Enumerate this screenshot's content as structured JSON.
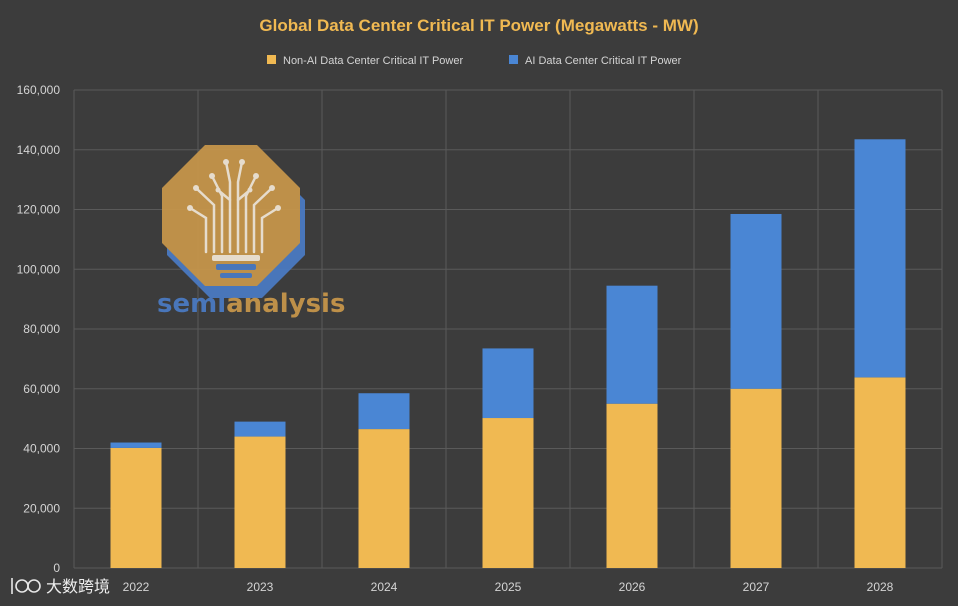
{
  "colors": {
    "background": "#3c3c3c",
    "grid": "#5a5a5a",
    "title": "#f0b952",
    "text": "#d4d4d4",
    "non_ai": "#f0b952",
    "ai": "#4a86d4",
    "logo_gold": "#c8974a",
    "logo_blue": "#4a7bc4",
    "logo_line": "#f3e9d8"
  },
  "logo": {
    "icon": "semianalysis-tree-logo-icon",
    "word_semi": "semi",
    "word_analysis": "analysis"
  },
  "watermark": {
    "icon": "dashuju-logo-icon",
    "text": "大数跨境"
  },
  "chart_data": {
    "type": "bar",
    "stacked": true,
    "title": "Global Data Center Critical IT Power (Megawatts - MW)",
    "xlabel": "",
    "ylabel": "",
    "categories": [
      "2022",
      "2023",
      "2024",
      "2025",
      "2026",
      "2027",
      "2028"
    ],
    "series": [
      {
        "name": "Non-AI Data Center Critical IT Power",
        "color": "#f0b952",
        "values": [
          40200,
          44000,
          46500,
          50200,
          55000,
          60000,
          63800
        ]
      },
      {
        "name": "AI Data Center Critical IT Power",
        "color": "#4a86d4",
        "values": [
          1800,
          5000,
          12000,
          23300,
          39500,
          58500,
          79700
        ]
      }
    ],
    "ylim": [
      0,
      160000
    ],
    "yticks": [
      0,
      20000,
      40000,
      60000,
      80000,
      100000,
      120000,
      140000,
      160000
    ],
    "ytick_labels": [
      "0",
      "20,000",
      "40,000",
      "60,000",
      "80,000",
      "100,000",
      "120,000",
      "140,000",
      "160,000"
    ],
    "grid": true,
    "legend_position": "top-center"
  }
}
